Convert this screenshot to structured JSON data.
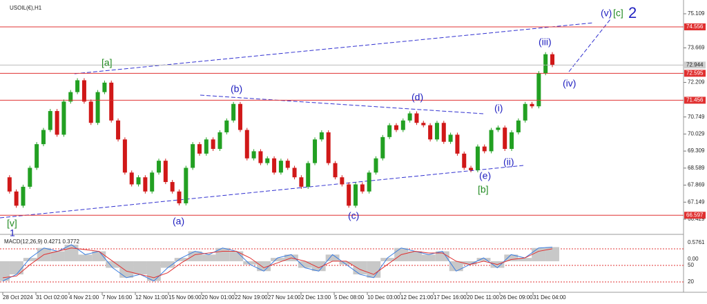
{
  "chart_data": {
    "type": "candlestick",
    "title": "USOIL(€),H1",
    "up_color": "#22a022",
    "down_color": "#d01818",
    "categories": [
      "28 Oct 2024",
      "31 Oct 02:00",
      "4 Nov 21:00",
      "7 Nov 16:00",
      "12 Nov 11:00",
      "15 Nov 06:00",
      "20 Nov 01:00",
      "22 Nov 19:00",
      "27 Nov 14:00",
      "2 Dec 13:00",
      "5 Dec 08:00",
      "10 Dec 03:00",
      "12 Dec 21:00",
      "17 Dec 16:00",
      "20 Dec 11:00",
      "26 Dec 09:00",
      "31 Dec 04:00"
    ],
    "close": [
      68.2,
      67.6,
      67.0,
      67.8,
      68.6,
      69.6,
      70.2,
      71.0,
      70.0,
      71.4,
      71.8,
      72.3,
      71.4,
      70.5,
      71.8,
      72.2,
      70.6,
      69.8,
      68.4,
      67.9,
      68.2,
      67.6,
      68.4,
      68.9,
      68.0,
      67.6,
      67.1,
      68.6,
      69.6,
      69.2,
      69.8,
      69.4,
      70.1,
      70.6,
      71.3,
      70.2,
      69.0,
      69.3,
      68.8,
      69.0,
      68.4,
      68.9,
      68.6,
      68.2,
      67.8,
      68.8,
      69.8,
      70.1,
      68.8,
      68.2,
      67.9,
      67.0,
      67.9,
      67.6,
      68.4,
      69.0,
      69.9,
      70.4,
      70.2,
      70.6,
      70.9,
      70.5,
      70.4,
      69.8,
      70.5,
      69.7,
      70.0,
      69.2,
      68.6,
      68.5,
      69.5,
      69.3,
      70.2,
      70.3,
      69.4,
      70.1,
      70.6,
      71.3,
      71.2,
      72.6,
      73.4,
      72.944
    ],
    "ylim": [
      65.846,
      75.692
    ],
    "yticks": [
      75.109,
      73.669,
      72.209,
      70.749,
      70.029,
      69.309,
      68.589,
      67.869,
      67.149,
      66.429
    ],
    "levels": [
      74.556,
      72.595,
      71.456,
      66.597
    ],
    "level_color": "#e03030",
    "current_price": 72.944,
    "waves": [
      {
        "text": "(v)",
        "color": "#2020c0"
      },
      {
        "text": "[c]",
        "color": "#228b22"
      },
      {
        "text": "2",
        "color": "#2020c0"
      },
      {
        "text": "(iii)",
        "color": "#2020c0"
      },
      {
        "text": "(iv)",
        "color": "#2020c0"
      },
      {
        "text": "[a]",
        "color": "#228b22"
      },
      {
        "text": "(b)",
        "color": "#2020c0"
      },
      {
        "text": "(d)",
        "color": "#2020c0"
      },
      {
        "text": "(i)",
        "color": "#2020c0"
      },
      {
        "text": "(ii)",
        "color": "#2020c0"
      },
      {
        "text": "(e)",
        "color": "#2020c0"
      },
      {
        "text": "[b]",
        "color": "#228b22"
      },
      {
        "text": "(a)",
        "color": "#2020c0"
      },
      {
        "text": "(c)",
        "color": "#2020c0"
      },
      {
        "text": "[v]",
        "color": "#228b22"
      },
      {
        "text": "1",
        "color": "#2020c0"
      }
    ],
    "macd": {
      "label": "MACD(12,26,9) 0.4271 0.3772",
      "ylim": [
        -0.9,
        0.75
      ],
      "axis_labels": [
        "0.5761",
        "0.00",
        "50",
        "20"
      ],
      "main": [
        -0.6,
        -0.4,
        0.1,
        0.4,
        0.3,
        0.5,
        0.2,
        0.3,
        -0.2,
        -0.5,
        -0.4,
        -0.6,
        -0.2,
        0.1,
        0.3,
        0.2,
        0.4,
        0.3,
        -0.1,
        -0.3,
        0.1,
        0.2,
        -0.2,
        -0.3,
        0.2,
        -0.1,
        -0.4,
        -0.5,
        0.1,
        0.4,
        0.3,
        0.2,
        0.3,
        -0.3,
        -0.1,
        0.1,
        -0.2,
        0.2,
        0.1,
        0.4,
        0.4271
      ],
      "signal": [
        -0.5,
        -0.45,
        -0.1,
        0.2,
        0.3,
        0.4,
        0.35,
        0.3,
        0.0,
        -0.3,
        -0.4,
        -0.5,
        -0.35,
        -0.05,
        0.2,
        0.25,
        0.3,
        0.3,
        0.1,
        -0.2,
        -0.05,
        0.1,
        0.0,
        -0.2,
        0.0,
        0.0,
        -0.25,
        -0.4,
        -0.1,
        0.2,
        0.3,
        0.25,
        0.25,
        0.0,
        -0.1,
        0.0,
        -0.1,
        0.05,
        0.1,
        0.3,
        0.3772
      ]
    }
  }
}
